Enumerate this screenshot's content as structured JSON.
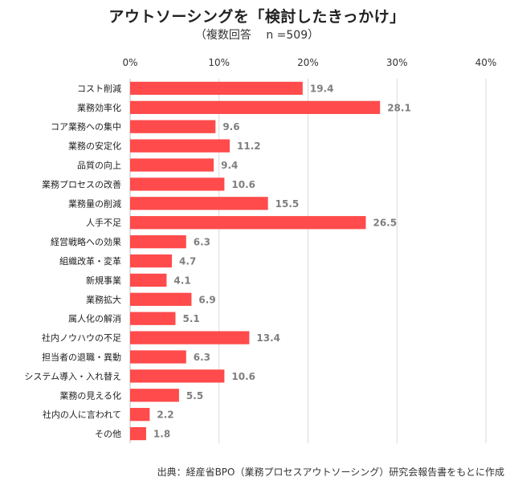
{
  "chart_data": {
    "type": "bar",
    "orientation": "horizontal",
    "title": "アウトソーシングを「検討したきっかけ」",
    "subtitle": "（複数回答　 n =509）",
    "categories": [
      "コスト削減",
      "業務効率化",
      "コア業務への集中",
      "業務の安定化",
      "品質の向上",
      "業務プロセスの改善",
      "業務量の削減",
      "人手不足",
      "経営戦略への効果",
      "組織改革・変革",
      "新規事業",
      "業務拡大",
      "属人化の解消",
      "社内ノウハウの不足",
      "担当者の退職・異動",
      "システム導入・入れ替え",
      "業務の見える化",
      "社内の人に言われて",
      "その他"
    ],
    "values": [
      19.4,
      28.1,
      9.6,
      11.2,
      9.4,
      10.6,
      15.5,
      26.5,
      6.3,
      4.7,
      4.1,
      6.9,
      5.1,
      13.4,
      6.3,
      10.6,
      5.5,
      2.2,
      1.8
    ],
    "value_labels": [
      "19.4",
      "28.1",
      "9.6",
      "11.2",
      "9.4",
      "10.6",
      "15.5",
      "26.5",
      "6.3",
      "4.7",
      "4.1",
      "6.9",
      "5.1",
      "13.4",
      "6.3",
      "10.6",
      "5.5",
      "2.2",
      "1.8"
    ],
    "xlim": [
      0,
      40
    ],
    "x_ticks": [
      "0%",
      "10%",
      "20%",
      "30%",
      "40%"
    ],
    "grid": true,
    "legend": "none",
    "bar_color": "#ff4b4b",
    "label_color": "#7f7f7f",
    "grid_color": "#d9d9d9"
  },
  "source": "出典：経産省BPO（業務プロセスアウトソーシング）研究会報告書をもとに作成"
}
